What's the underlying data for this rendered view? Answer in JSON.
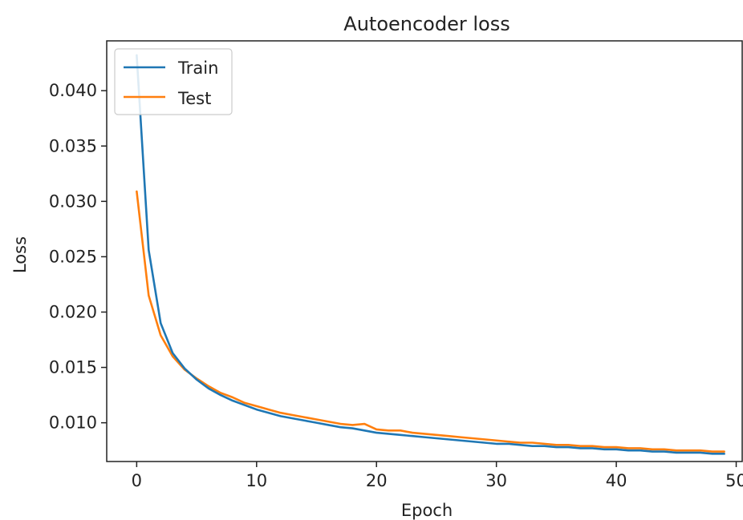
{
  "chart_data": {
    "type": "line",
    "title": "Autoencoder loss",
    "xlabel": "Epoch",
    "ylabel": "Loss",
    "xlim": [
      -2.5,
      50.5
    ],
    "ylim": [
      0.0065,
      0.0445
    ],
    "xticks": [
      0,
      10,
      20,
      30,
      40,
      50
    ],
    "xtick_labels": [
      "0",
      "10",
      "20",
      "30",
      "40",
      "50"
    ],
    "yticks": [
      0.01,
      0.015,
      0.02,
      0.025,
      0.03,
      0.035,
      0.04
    ],
    "ytick_labels": [
      "0.010",
      "0.015",
      "0.020",
      "0.025",
      "0.030",
      "0.035",
      "0.040"
    ],
    "grid": false,
    "legend_position": "top-left",
    "x": [
      0,
      1,
      2,
      3,
      4,
      5,
      6,
      7,
      8,
      9,
      10,
      11,
      12,
      13,
      14,
      15,
      16,
      17,
      18,
      19,
      20,
      21,
      22,
      23,
      24,
      25,
      26,
      27,
      28,
      29,
      30,
      31,
      32,
      33,
      34,
      35,
      36,
      37,
      38,
      39,
      40,
      41,
      42,
      43,
      44,
      45,
      46,
      47,
      48,
      49
    ],
    "series": [
      {
        "name": "Train",
        "color": "#1f77b4",
        "values": [
          0.0432,
          0.0256,
          0.019,
          0.0163,
          0.0149,
          0.0139,
          0.0131,
          0.0125,
          0.012,
          0.0116,
          0.0112,
          0.0109,
          0.0106,
          0.0104,
          0.0102,
          0.01,
          0.0098,
          0.0096,
          0.0095,
          0.0093,
          0.0091,
          0.009,
          0.0089,
          0.0088,
          0.0087,
          0.0086,
          0.0085,
          0.0084,
          0.0083,
          0.0082,
          0.0081,
          0.0081,
          0.008,
          0.0079,
          0.0079,
          0.0078,
          0.0078,
          0.0077,
          0.0077,
          0.0076,
          0.0076,
          0.0075,
          0.0075,
          0.0074,
          0.0074,
          0.0073,
          0.0073,
          0.0073,
          0.0072,
          0.0072
        ]
      },
      {
        "name": "Test",
        "color": "#ff7f0e",
        "values": [
          0.0309,
          0.0215,
          0.0179,
          0.016,
          0.0148,
          0.014,
          0.0133,
          0.0127,
          0.0123,
          0.0118,
          0.0115,
          0.0112,
          0.0109,
          0.0107,
          0.0105,
          0.0103,
          0.0101,
          0.0099,
          0.0098,
          0.0099,
          0.0094,
          0.0093,
          0.0093,
          0.0091,
          0.009,
          0.0089,
          0.0088,
          0.0087,
          0.0086,
          0.0085,
          0.0084,
          0.0083,
          0.0082,
          0.0082,
          0.0081,
          0.008,
          0.008,
          0.0079,
          0.0079,
          0.0078,
          0.0078,
          0.0077,
          0.0077,
          0.0076,
          0.0076,
          0.0075,
          0.0075,
          0.0075,
          0.0074,
          0.0074
        ]
      }
    ]
  }
}
